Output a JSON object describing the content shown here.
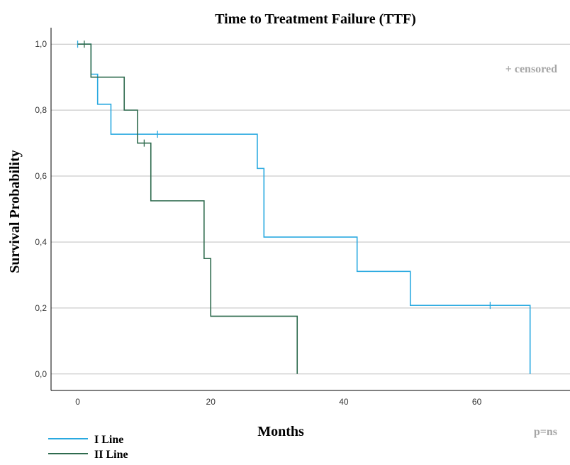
{
  "chart_data": {
    "type": "line",
    "step": true,
    "title": "Time to Treatment Failure (TTF)",
    "xlabel": "Months",
    "ylabel": "Survival Probability",
    "xlim": [
      -4,
      74
    ],
    "ylim": [
      -0.05,
      1.05
    ],
    "x_ticks": [
      0,
      20,
      40,
      60
    ],
    "x_tick_labels": [
      "0",
      "20",
      "40",
      "60"
    ],
    "y_ticks": [
      0,
      0.2,
      0.4,
      0.6,
      0.8,
      1.0
    ],
    "y_tick_labels": [
      "0,0",
      "0,2",
      "0,4",
      "0,6",
      "0,8",
      "1,0"
    ],
    "grid": "horizontal",
    "annotation": "+ censored",
    "pvalue_text": "p=ns",
    "legend_position": "bottom-left",
    "series": [
      {
        "name": "I Line",
        "color": "#29a9e0",
        "x": [
          0,
          2,
          3,
          5,
          27,
          28,
          42,
          50,
          68
        ],
        "y": [
          1.0,
          0.909,
          0.818,
          0.727,
          0.623,
          0.415,
          0.311,
          0.208,
          0.0
        ],
        "censored": [
          {
            "x": 0,
            "y": 1.0
          },
          {
            "x": 12,
            "y": 0.727
          },
          {
            "x": 62,
            "y": 0.208
          }
        ]
      },
      {
        "name": "II Line",
        "color": "#2f6b4e",
        "x": [
          0,
          2,
          7,
          9,
          11,
          19,
          20,
          33
        ],
        "y": [
          1.0,
          0.9,
          0.8,
          0.7,
          0.525,
          0.35,
          0.175,
          0.0
        ],
        "censored": [
          {
            "x": 1,
            "y": 1.0
          },
          {
            "x": 10,
            "y": 0.7
          }
        ]
      }
    ]
  }
}
